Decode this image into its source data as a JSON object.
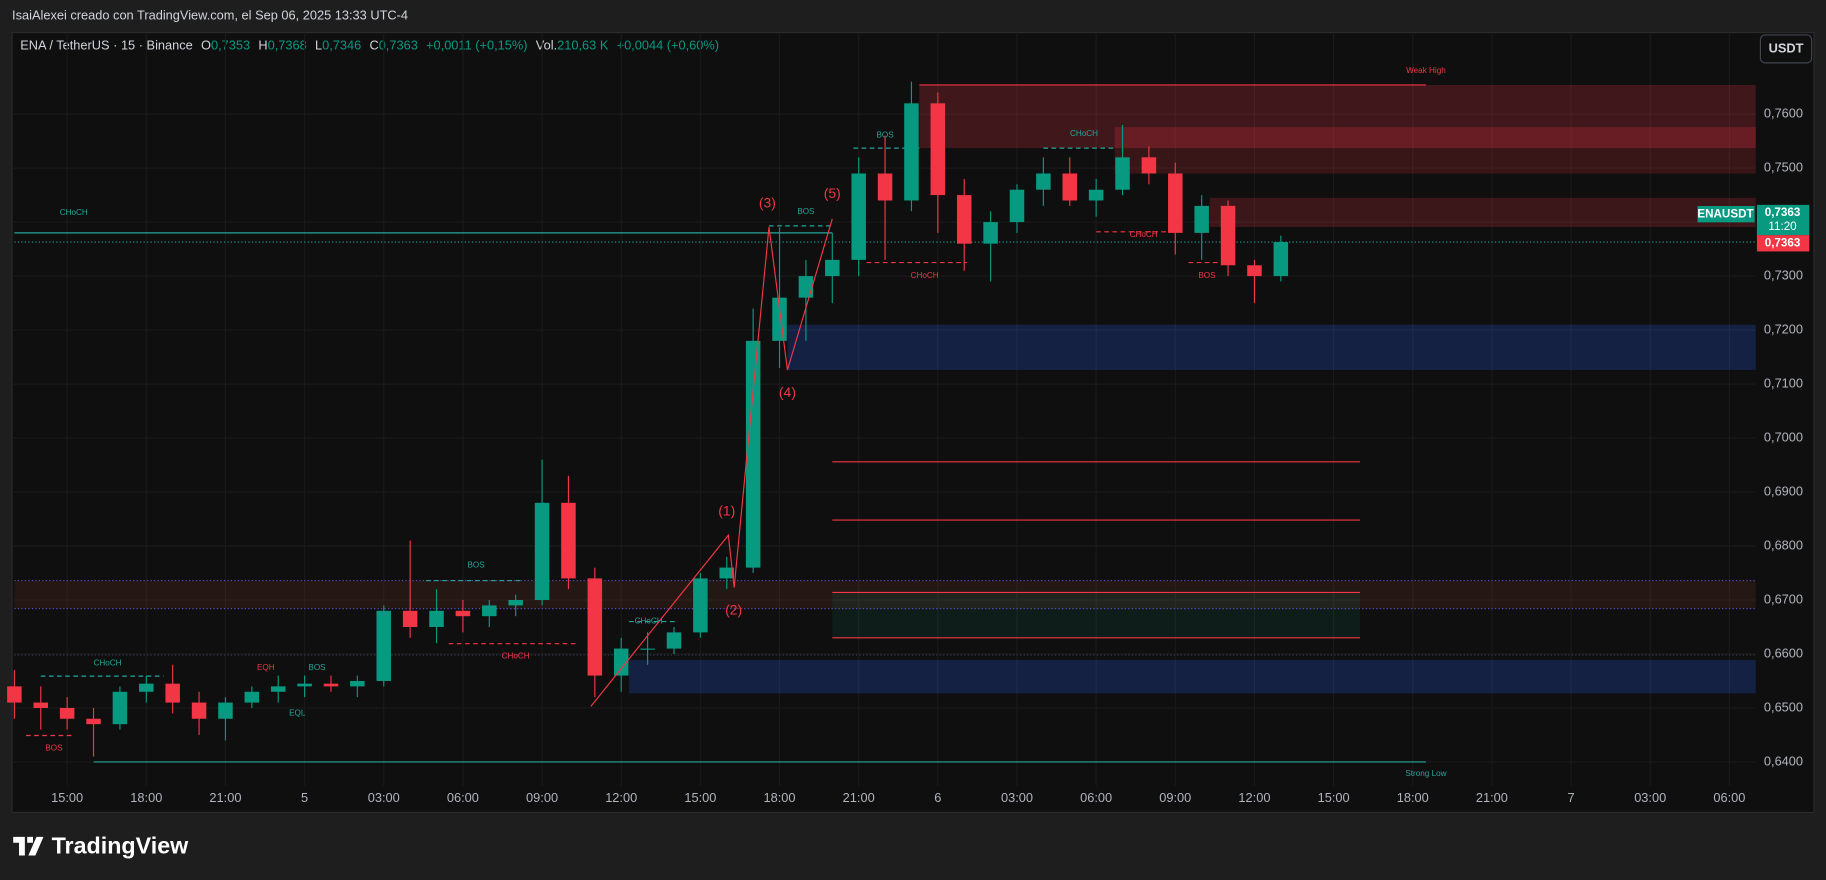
{
  "header": {
    "credit": "IsaiAlexei creado con TradingView.com, el Sep 06, 2025 13:33 UTC-4"
  },
  "chart_data": {
    "type": "candlestick",
    "legend": {
      "symbol": "ENA / TetherUS · 15 · Binance",
      "o_label": "O",
      "o": "0,7353",
      "h_label": "H",
      "h": "0,7368",
      "l_label": "L",
      "l": "0,7346",
      "c_label": "C",
      "c": "0,7363",
      "change": "+0,0011 (+0,15%)",
      "vol_label": "Vol.",
      "vol": "210,63 K",
      "vol_change": "+0,0044 (+0,60%)"
    },
    "currency": "USDT",
    "categories": [
      null,
      null,
      "15:00",
      null,
      null,
      "18:00",
      null,
      null,
      "21:00",
      null,
      null,
      "5",
      null,
      null,
      "03:00",
      null,
      null,
      "06:00",
      null,
      null,
      "09:00",
      null,
      null,
      "12:00",
      null,
      null,
      "15:00",
      null,
      null,
      "18:00",
      null,
      null,
      "21:00",
      null,
      null,
      "6",
      null,
      null,
      "03:00",
      null,
      null,
      "06:00",
      null,
      null,
      "09:00",
      null,
      null,
      "12:00",
      null,
      null,
      "15:00",
      null,
      null,
      "18:00",
      null,
      null,
      "21:00",
      null,
      null,
      "7",
      null,
      null,
      "03:00",
      null,
      null,
      "06:00",
      null
    ],
    "open": [
      0.654,
      0.651,
      0.65,
      0.648,
      0.647,
      0.653,
      0.6545,
      0.651,
      0.648,
      0.651,
      0.653,
      0.654,
      0.6545,
      0.654,
      0.655,
      0.668,
      0.665,
      0.668,
      0.667,
      0.669,
      0.67,
      0.688,
      0.674,
      0.656,
      0.661,
      0.661,
      0.664,
      0.674,
      0.676,
      0.718,
      0.726,
      0.73,
      0.733,
      0.749,
      0.744,
      0.762,
      0.745,
      0.736,
      0.74,
      0.746,
      0.749,
      0.744,
      0.746,
      0.752,
      0.749,
      0.738,
      0.743,
      0.732,
      0.73,
      null,
      null,
      null,
      null,
      null,
      null,
      null,
      null,
      null,
      null,
      null,
      null,
      null,
      null,
      null,
      null,
      null,
      null
    ],
    "high": [
      0.657,
      0.654,
      0.652,
      0.65,
      0.654,
      0.656,
      0.658,
      0.653,
      0.652,
      0.654,
      0.656,
      0.656,
      0.656,
      0.656,
      0.669,
      0.681,
      0.672,
      0.67,
      0.67,
      0.671,
      0.696,
      0.693,
      0.676,
      0.663,
      0.664,
      0.665,
      0.675,
      0.678,
      0.724,
      0.739,
      0.733,
      0.738,
      0.752,
      0.756,
      0.766,
      0.764,
      0.748,
      0.742,
      0.747,
      0.752,
      0.752,
      0.748,
      0.758,
      0.754,
      0.751,
      0.745,
      0.744,
      0.733,
      0.7375,
      null,
      null,
      null,
      null,
      null,
      null,
      null,
      null,
      null,
      null,
      null,
      null,
      null,
      null,
      null,
      null,
      null,
      null
    ],
    "low": [
      0.648,
      0.646,
      0.646,
      0.641,
      0.646,
      0.651,
      0.649,
      0.645,
      0.644,
      0.65,
      0.651,
      0.652,
      0.653,
      0.652,
      0.654,
      0.663,
      0.662,
      0.664,
      0.665,
      0.667,
      0.669,
      0.672,
      0.652,
      0.653,
      0.658,
      0.66,
      0.663,
      0.672,
      0.675,
      0.713,
      0.718,
      0.725,
      0.73,
      0.733,
      0.742,
      0.738,
      0.731,
      0.729,
      0.738,
      0.743,
      0.743,
      0.741,
      0.745,
      0.747,
      0.734,
      0.733,
      0.73,
      0.725,
      0.729,
      null,
      null,
      null,
      null,
      null,
      null,
      null,
      null,
      null,
      null,
      null,
      null,
      null,
      null,
      null,
      null,
      null,
      null
    ],
    "close": [
      0.651,
      0.65,
      0.648,
      0.647,
      0.653,
      0.6545,
      0.651,
      0.648,
      0.651,
      0.653,
      0.654,
      0.6545,
      0.654,
      0.655,
      0.668,
      0.665,
      0.668,
      0.667,
      0.669,
      0.67,
      0.688,
      0.674,
      0.656,
      0.661,
      0.661,
      0.664,
      0.674,
      0.676,
      0.718,
      0.726,
      0.73,
      0.733,
      0.749,
      0.744,
      0.762,
      0.745,
      0.736,
      0.74,
      0.746,
      0.749,
      0.744,
      0.746,
      0.752,
      0.749,
      0.738,
      0.743,
      0.732,
      0.73,
      0.7363,
      null,
      null,
      null,
      null,
      null,
      null,
      null,
      null,
      null,
      null,
      null,
      null,
      null,
      null,
      null,
      null,
      null,
      null
    ],
    "up_color": "#089981",
    "down_color": "#f23645",
    "ylim": [
      0.6356,
      0.7751
    ],
    "yticks": [
      {
        "value": 0.64,
        "label": "0,6400"
      },
      {
        "value": 0.65,
        "label": "0,6500"
      },
      {
        "value": 0.66,
        "label": "0,6600"
      },
      {
        "value": 0.67,
        "label": "0,6700"
      },
      {
        "value": 0.68,
        "label": "0,6800"
      },
      {
        "value": 0.69,
        "label": "0,6900"
      },
      {
        "value": 0.7,
        "label": "0,7000"
      },
      {
        "value": 0.71,
        "label": "0,7100"
      },
      {
        "value": 0.72,
        "label": "0,7200"
      },
      {
        "value": 0.73,
        "label": "0,7300"
      },
      {
        "value": 0.74,
        "label": "0,7400"
      },
      {
        "value": 0.75,
        "label": "0,7500"
      },
      {
        "value": 0.76,
        "label": "0,7600"
      }
    ],
    "price_tags": {
      "symbol": "ENAUSDT",
      "price": "0,7363",
      "countdown": "11:20",
      "price_last": "0,7363"
    },
    "zones": [
      {
        "from": 34.3,
        "to": 66,
        "top": 0.7654,
        "bottom": 0.7537,
        "color": "rgba(242,54,69,0.22)"
      },
      {
        "from": 41.7,
        "to": 66,
        "top": 0.7576,
        "bottom": 0.7537,
        "color": "rgba(242,54,69,0.22)"
      },
      {
        "from": 41.7,
        "to": 66,
        "top": 0.7537,
        "bottom": 0.749,
        "color": "rgba(242,54,69,0.18)"
      },
      {
        "from": 45.3,
        "to": 66,
        "top": 0.7445,
        "bottom": 0.7391,
        "color": "rgba(242,54,69,0.2)"
      },
      {
        "from": 29.3,
        "to": 66,
        "top": 0.721,
        "bottom": 0.7126,
        "color": "rgba(41,98,255,0.22)"
      },
      {
        "from": 23.3,
        "to": 66,
        "top": 0.6589,
        "bottom": 0.6527,
        "color": "rgba(41,98,255,0.22)"
      },
      {
        "from": 0,
        "to": 66,
        "top": 0.6736,
        "bottom": 0.6684,
        "color": "rgba(150,70,50,0.16)"
      },
      {
        "from": 31.0,
        "to": 51.0,
        "top": 0.6714,
        "bottom": 0.663,
        "color": "rgba(8,153,129,0.1)"
      }
    ],
    "levels": [
      {
        "from": 31.0,
        "to": 51.0,
        "value": 0.6956,
        "color": "#f23645",
        "dash": "solid"
      },
      {
        "from": 31.0,
        "to": 51.0,
        "value": 0.6848,
        "color": "#f23645",
        "dash": "solid"
      },
      {
        "from": 31.0,
        "to": 51.0,
        "value": 0.6714,
        "color": "#f23645",
        "dash": "solid"
      },
      {
        "from": 31.0,
        "to": 51.0,
        "value": 0.663,
        "color": "#f23645",
        "dash": "solid"
      },
      {
        "from": 0,
        "to": 31.0,
        "value": 0.738,
        "color": "#26a69a",
        "dash": "solid"
      },
      {
        "from": 34.3,
        "to": 53.5,
        "value": 0.7654,
        "color": "#f23645",
        "dash": "solid"
      },
      {
        "from": 3.0,
        "to": 53.5,
        "value": 0.64,
        "color": "#26a69a",
        "dash": "solid"
      },
      {
        "from": 0,
        "to": 66,
        "value": 0.7363,
        "color": "#26a69a",
        "dash": "dotted"
      },
      {
        "from": 0,
        "to": 66,
        "value": 0.6736,
        "color": "#5b4fc4",
        "dash": "dotted"
      },
      {
        "from": 0,
        "to": 66,
        "value": 0.6684,
        "color": "#5b4fc4",
        "dash": "dotted"
      },
      {
        "from": 0,
        "to": 66,
        "value": 0.6598,
        "color": "#3a3a5a",
        "dash": "dotted"
      },
      {
        "from": 1.0,
        "to": 5.65,
        "value": 0.6559,
        "color": "#26a69a",
        "dash": "dashed"
      },
      {
        "from": 0.44,
        "to": 2.2,
        "value": 0.6449,
        "color": "#f23645",
        "dash": "dashed"
      },
      {
        "from": 16.46,
        "to": 21.3,
        "value": 0.6619,
        "color": "#f23645",
        "dash": "dashed"
      },
      {
        "from": 15.6,
        "to": 19.2,
        "value": 0.6736,
        "color": "#26a69a",
        "dash": "dashed"
      },
      {
        "from": 23.3,
        "to": 25.1,
        "value": 0.666,
        "color": "#26a69a",
        "dash": "dashed"
      },
      {
        "from": 28.6,
        "to": 31.0,
        "value": 0.7393,
        "color": "#26a69a",
        "dash": "dashed"
      },
      {
        "from": 31.8,
        "to": 34.3,
        "value": 0.7537,
        "color": "#26a69a",
        "dash": "dashed"
      },
      {
        "from": 32.3,
        "to": 36.1,
        "value": 0.7325,
        "color": "#f23645",
        "dash": "dashed"
      },
      {
        "from": 39.0,
        "to": 41.7,
        "value": 0.7537,
        "color": "#26a69a",
        "dash": "dashed"
      },
      {
        "from": 41.0,
        "to": 44.0,
        "value": 0.7382,
        "color": "#f23645",
        "dash": "dashed"
      },
      {
        "from": 44.5,
        "to": 45.8,
        "value": 0.7325,
        "color": "#f23645",
        "dash": "dashed"
      }
    ],
    "wave": {
      "x": [
        21.85,
        27.06,
        27.28,
        28.6,
        29.3,
        31.0
      ],
      "y": [
        0.6503,
        0.682,
        0.6723,
        0.7391,
        0.7126,
        0.7406
      ],
      "color": "#f23645"
    },
    "annotations": [
      {
        "text": "CHoCH",
        "x": 2.25,
        "y": 0.7417,
        "color": "#26a69a"
      },
      {
        "text": "BOS",
        "x": 1.5,
        "y": 0.6425,
        "color": "#f23645"
      },
      {
        "text": "CHoCH",
        "x": 3.53,
        "y": 0.6583,
        "color": "#26a69a"
      },
      {
        "text": "EQH",
        "x": 9.53,
        "y": 0.6574,
        "color": "#f23645"
      },
      {
        "text": "BOS",
        "x": 11.47,
        "y": 0.6574,
        "color": "#26a69a"
      },
      {
        "text": "EQL",
        "x": 10.72,
        "y": 0.649,
        "color": "#26a69a"
      },
      {
        "text": "BOS",
        "x": 17.5,
        "y": 0.6764,
        "color": "#26a69a"
      },
      {
        "text": "CHoCH",
        "x": 19.0,
        "y": 0.6596,
        "color": "#f23645"
      },
      {
        "text": "CHoCH",
        "x": 24.04,
        "y": 0.666,
        "color": "#26a69a"
      },
      {
        "text": "BOS",
        "x": 30.0,
        "y": 0.7419,
        "color": "#26a69a"
      },
      {
        "text": "BOS",
        "x": 33.0,
        "y": 0.7561,
        "color": "#26a69a"
      },
      {
        "text": "CHoCH",
        "x": 34.5,
        "y": 0.73,
        "color": "#f23645"
      },
      {
        "text": "CHoCH",
        "x": 40.54,
        "y": 0.7563,
        "color": "#26a69a"
      },
      {
        "text": "CHoCH",
        "x": 42.8,
        "y": 0.7376,
        "color": "#f23645"
      },
      {
        "text": "BOS",
        "x": 45.2,
        "y": 0.73,
        "color": "#f23645"
      },
      {
        "text": "Weak High",
        "x": 53.5,
        "y": 0.768,
        "color": "#f23645"
      },
      {
        "text": "Strong Low",
        "x": 53.5,
        "y": 0.6378,
        "color": "#26a69a"
      },
      {
        "text": "(1)",
        "x": 27.0,
        "y": 0.6863,
        "color": "#f23645",
        "big": true
      },
      {
        "text": "(2)",
        "x": 27.26,
        "y": 0.668,
        "color": "#f23645",
        "big": true
      },
      {
        "text": "(3)",
        "x": 28.54,
        "y": 0.7434,
        "color": "#f23645",
        "big": true
      },
      {
        "text": "(4)",
        "x": 29.3,
        "y": 0.7083,
        "color": "#f23645",
        "big": true
      },
      {
        "text": "(5)",
        "x": 31.0,
        "y": 0.7451,
        "color": "#f23645",
        "big": true
      }
    ]
  },
  "footer": {
    "brand": "TradingView"
  }
}
